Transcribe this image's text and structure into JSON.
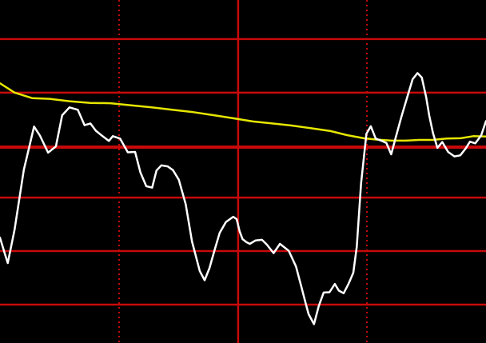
{
  "chart_data": {
    "type": "line",
    "title": "",
    "xlabel": "",
    "ylabel": "",
    "grid": true,
    "legend": "none",
    "colors": {
      "background": "#000000",
      "grid": "#c80a0a",
      "line_a": "#ffffff",
      "line_b": "#e6e600"
    },
    "xlim": [
      0,
      1
    ],
    "ylim": [
      0,
      1
    ],
    "grid_y": [
      0.886,
      0.73,
      0.571,
      0.424,
      0.268,
      0.112
    ],
    "highlight_y": [
      0.571
    ],
    "grid_x_solid": [
      0.49
    ],
    "grid_x_dotted": [
      0.245,
      0.755
    ],
    "series": [
      {
        "key": "a",
        "x": [
          0.0,
          0.01,
          0.016,
          0.03,
          0.049,
          0.07,
          0.082,
          0.099,
          0.115,
          0.128,
          0.143,
          0.16,
          0.174,
          0.186,
          0.197,
          0.211,
          0.224,
          0.232,
          0.247,
          0.263,
          0.278,
          0.289,
          0.301,
          0.313,
          0.322,
          0.332,
          0.345,
          0.356,
          0.368,
          0.382,
          0.395,
          0.411,
          0.421,
          0.431,
          0.441,
          0.452,
          0.465,
          0.48,
          0.487,
          0.493,
          0.499,
          0.507,
          0.514,
          0.526,
          0.539,
          0.549,
          0.563,
          0.576,
          0.594,
          0.609,
          0.62,
          0.628,
          0.635,
          0.646,
          0.656,
          0.666,
          0.678,
          0.689,
          0.697,
          0.707,
          0.717,
          0.727,
          0.734,
          0.743,
          0.754,
          0.763,
          0.773,
          0.786,
          0.795,
          0.805,
          0.814,
          0.826,
          0.838,
          0.849,
          0.859,
          0.868,
          0.877,
          0.883,
          0.891,
          0.9,
          0.91,
          0.922,
          0.935,
          0.947,
          0.958,
          0.967,
          0.978,
          0.99,
          1.0
        ],
        "y": [
          0.307,
          0.26,
          0.233,
          0.33,
          0.505,
          0.631,
          0.605,
          0.555,
          0.573,
          0.664,
          0.687,
          0.68,
          0.635,
          0.64,
          0.619,
          0.603,
          0.589,
          0.603,
          0.596,
          0.556,
          0.557,
          0.497,
          0.457,
          0.453,
          0.503,
          0.518,
          0.515,
          0.504,
          0.476,
          0.405,
          0.296,
          0.21,
          0.183,
          0.218,
          0.268,
          0.321,
          0.353,
          0.368,
          0.361,
          0.326,
          0.303,
          0.294,
          0.289,
          0.299,
          0.301,
          0.287,
          0.262,
          0.289,
          0.269,
          0.223,
          0.164,
          0.121,
          0.084,
          0.055,
          0.108,
          0.147,
          0.148,
          0.172,
          0.153,
          0.145,
          0.172,
          0.205,
          0.28,
          0.465,
          0.61,
          0.632,
          0.596,
          0.589,
          0.583,
          0.55,
          0.598,
          0.66,
          0.717,
          0.769,
          0.787,
          0.774,
          0.716,
          0.664,
          0.612,
          0.569,
          0.586,
          0.557,
          0.544,
          0.547,
          0.567,
          0.587,
          0.582,
          0.605,
          0.647
        ]
      },
      {
        "key": "b",
        "x": [
          0.0,
          0.03,
          0.066,
          0.102,
          0.143,
          0.186,
          0.227,
          0.27,
          0.312,
          0.354,
          0.398,
          0.44,
          0.481,
          0.52,
          0.56,
          0.6,
          0.64,
          0.68,
          0.714,
          0.748,
          0.776,
          0.806,
          0.833,
          0.862,
          0.89,
          0.919,
          0.948,
          0.974,
          1.0
        ],
        "y": [
          0.757,
          0.73,
          0.714,
          0.712,
          0.705,
          0.7,
          0.699,
          0.693,
          0.687,
          0.68,
          0.673,
          0.664,
          0.655,
          0.646,
          0.64,
          0.634,
          0.626,
          0.618,
          0.606,
          0.597,
          0.593,
          0.59,
          0.59,
          0.592,
          0.592,
          0.596,
          0.597,
          0.603,
          0.602
        ]
      }
    ]
  }
}
